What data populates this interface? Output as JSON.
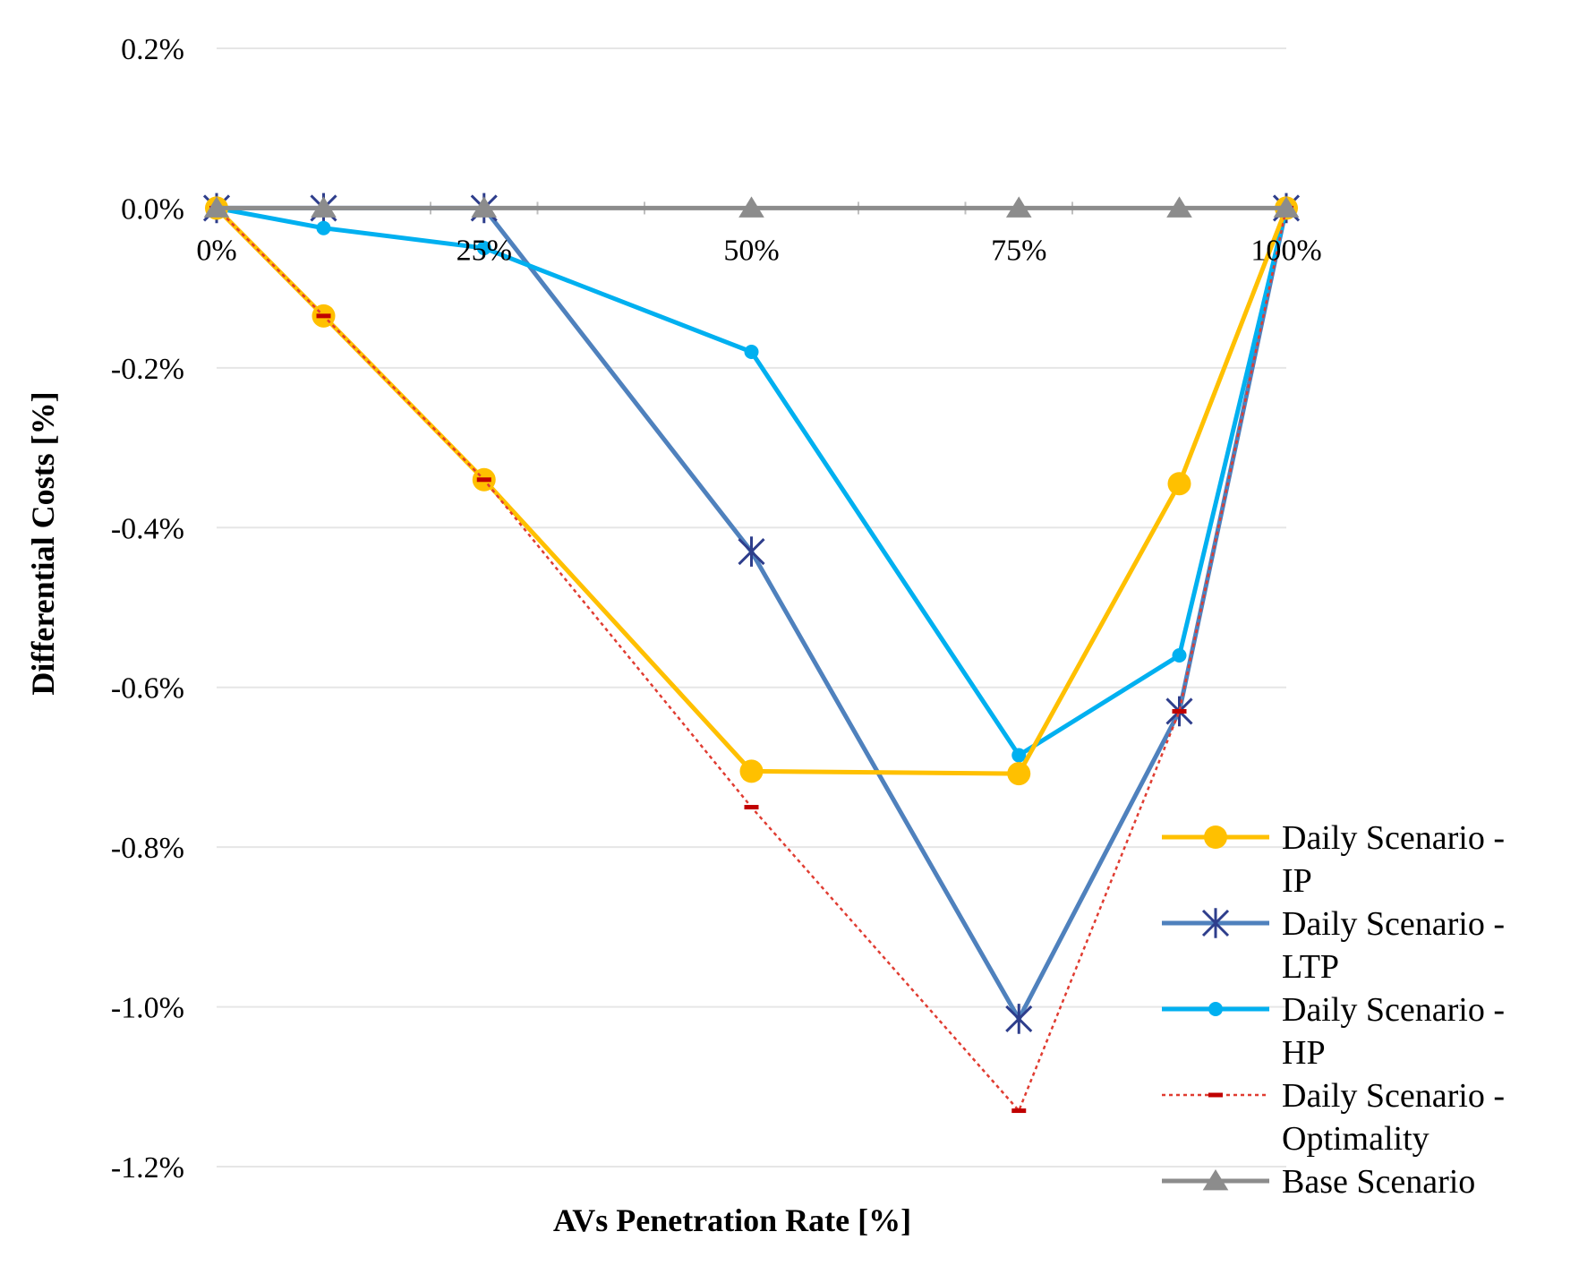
{
  "chart_data": {
    "type": "line",
    "title": "",
    "xlabel": "AVs Penetration Rate [%]",
    "ylabel": "Differential Costs [%]",
    "x": [
      0,
      10,
      25,
      50,
      75,
      90,
      100
    ],
    "x_tick_values": [
      0,
      25,
      50,
      75,
      100
    ],
    "x_tick_labels": [
      "0%",
      "25%",
      "50%",
      "75%",
      "100%"
    ],
    "xlim": [
      0,
      100
    ],
    "y_tick_values": [
      0.2,
      0,
      -0.2,
      -0.4,
      -0.6,
      -0.8,
      -1.0,
      -1.2
    ],
    "y_tick_labels": [
      "0.2%",
      "0.0%",
      "-0.2%",
      "-0.4%",
      "-0.6%",
      "-0.8%",
      "-1.0%",
      "-1.2%"
    ],
    "ylim": [
      -1.2,
      0.2
    ],
    "grid": true,
    "legend_position": "bottom-right",
    "series": [
      {
        "name": "Daily Scenario - IP",
        "legend_lines": [
          "Daily Scenario -",
          "IP"
        ],
        "color": "#FFC000",
        "marker": "circle",
        "dash": "solid",
        "values": [
          0,
          -0.135,
          -0.34,
          -0.705,
          -0.708,
          -0.345,
          0
        ]
      },
      {
        "name": "Daily Scenario - LTP",
        "legend_lines": [
          "Daily Scenario -",
          "LTP"
        ],
        "color": "#4F81BD",
        "marker_color": "#2E3E8C",
        "marker": "star",
        "dash": "solid",
        "values": [
          0,
          0,
          0,
          -0.43,
          -1.015,
          -0.63,
          0
        ]
      },
      {
        "name": "Daily Scenario - HP",
        "legend_lines": [
          "Daily Scenario -",
          "HP"
        ],
        "color": "#00B0F0",
        "marker": "circle-small",
        "dash": "solid",
        "values": [
          0,
          -0.025,
          -0.05,
          -0.18,
          -0.685,
          -0.56,
          0
        ]
      },
      {
        "name": "Daily Scenario - Optimality",
        "legend_lines": [
          "Daily Scenario -",
          "Optimality"
        ],
        "color": "#E03C31",
        "marker_color": "#C00000",
        "marker": "dash",
        "dash": "dotted",
        "values": [
          0,
          -0.135,
          -0.34,
          -0.75,
          -1.13,
          -0.63,
          0
        ]
      },
      {
        "name": "Base Scenario",
        "legend_lines": [
          "Base Scenario"
        ],
        "color": "#8C8C8C",
        "marker": "triangle",
        "dash": "solid",
        "values": [
          0,
          0,
          0,
          0,
          0,
          0,
          0
        ]
      }
    ]
  }
}
